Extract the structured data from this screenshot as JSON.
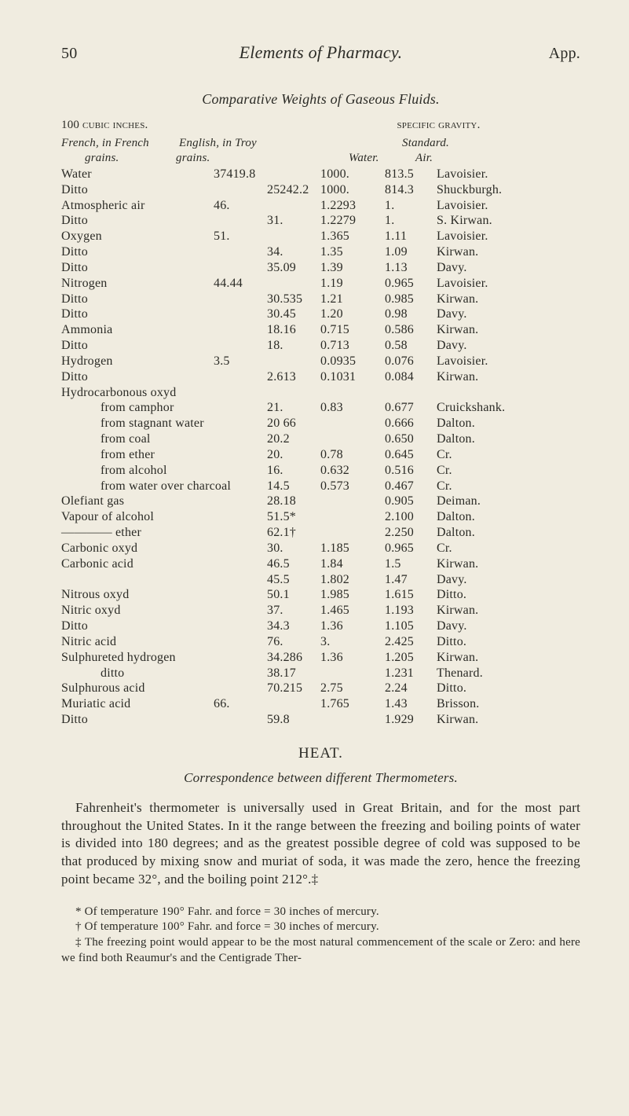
{
  "colors": {
    "background": "#f0ece0",
    "text": "#2b2b26"
  },
  "typography": {
    "family": "Times New Roman / Georgia serif",
    "body_size_pt": 12,
    "header_size_pt": 15,
    "italic_sections": [
      "running_title",
      "subheading",
      "column_headers",
      "correspondence_line"
    ]
  },
  "header": {
    "page_number": "50",
    "running_title": "Elements of Pharmacy.",
    "app": "App."
  },
  "subheading": "Comparative Weights of Gaseous Fluids.",
  "table_headers": {
    "left_caption": "100 cubic inches.",
    "right_caption": "specific gravity.",
    "row1": {
      "french": "French, in French",
      "english": "English, in Troy",
      "standard": "Standard."
    },
    "row2": {
      "grains1": "grains.",
      "grains2": "grains.",
      "water": "Water.",
      "air": "Air."
    }
  },
  "rows": [
    {
      "name": "Water",
      "a": "37419.8",
      "b": "",
      "w": "1000.",
      "air": "813.5",
      "auth": "Lavoisier."
    },
    {
      "name": "Ditto",
      "a": "",
      "b": "25242.2",
      "w": "1000.",
      "air": "814.3",
      "auth": "Shuckburgh."
    },
    {
      "name": "Atmospheric air",
      "a": "46.",
      "b": "",
      "w": "1.2293",
      "air": "1.",
      "auth": "Lavoisier."
    },
    {
      "name": "Ditto",
      "a": "",
      "b": "31.",
      "w": "1.2279",
      "air": "1.",
      "auth": "S. Kirwan."
    },
    {
      "name": "Oxygen",
      "a": "51.",
      "b": "",
      "w": "1.365",
      "air": "1.11",
      "auth": "Lavoisier."
    },
    {
      "name": "Ditto",
      "a": "",
      "b": "34.",
      "w": "1.35",
      "air": "1.09",
      "auth": "Kirwan."
    },
    {
      "name": "Ditto",
      "a": "",
      "b": "35.09",
      "w": "1.39",
      "air": "1.13",
      "auth": "Davy."
    },
    {
      "name": "Nitrogen",
      "a": "44.44",
      "b": "",
      "w": "1.19",
      "air": "0.965",
      "auth": "Lavoisier."
    },
    {
      "name": "Ditto",
      "a": "",
      "b": "30.535",
      "w": "1.21",
      "air": "0.985",
      "auth": "Kirwan."
    },
    {
      "name": "Ditto",
      "a": "",
      "b": "30.45",
      "w": "1.20",
      "air": "0.98",
      "auth": "Davy."
    },
    {
      "name": "Ammonia",
      "a": "",
      "b": "18.16",
      "w": "0.715",
      "air": "0.586",
      "auth": "Kirwan."
    },
    {
      "name": "Ditto",
      "a": "",
      "b": "18.",
      "w": "0.713",
      "air": "0.58",
      "auth": "Davy."
    },
    {
      "name": "Hydrogen",
      "a": "3.5",
      "b": "",
      "w": "0.0935",
      "air": "0.076",
      "auth": "Lavoisier."
    },
    {
      "name": "Ditto",
      "a": "",
      "b": "2.613",
      "w": "0.1031",
      "air": "0.084",
      "auth": "Kirwan."
    },
    {
      "name": "Hydrocarbonous oxyd",
      "a": "",
      "b": "",
      "w": "",
      "air": "",
      "auth": ""
    },
    {
      "name": "from camphor",
      "indent": true,
      "a": "",
      "b": "21.",
      "w": "0.83",
      "air": "0.677",
      "auth": "Cruickshank."
    },
    {
      "name": "from stagnant water",
      "indent": true,
      "a": "",
      "b": "20 66",
      "w": "",
      "air": "0.666",
      "auth": "Dalton."
    },
    {
      "name": "from coal",
      "indent": true,
      "a": "",
      "b": "20.2",
      "w": "",
      "air": "0.650",
      "auth": "Dalton."
    },
    {
      "name": "from ether",
      "indent": true,
      "a": "",
      "b": "20.",
      "w": "0.78",
      "air": "0.645",
      "auth": "Cr."
    },
    {
      "name": "from alcohol",
      "indent": true,
      "a": "",
      "b": "16.",
      "w": "0.632",
      "air": "0.516",
      "auth": "Cr."
    },
    {
      "name": "from water over charcoal",
      "indent": true,
      "a": "",
      "b": "14.5",
      "w": "0.573",
      "air": "0.467",
      "auth": "Cr."
    },
    {
      "name": "Olefiant gas",
      "a": "",
      "b": "28.18",
      "w": "",
      "air": "0.905",
      "auth": "Deiman."
    },
    {
      "name": "Vapour of alcohol",
      "a": "",
      "b": "51.5*",
      "w": "",
      "air": "2.100",
      "auth": "Dalton."
    },
    {
      "name": "———— ether",
      "a": "",
      "b": "62.1†",
      "w": "",
      "air": "2.250",
      "auth": "Dalton."
    },
    {
      "name": "Carbonic oxyd",
      "a": "",
      "b": "30.",
      "w": "1.185",
      "air": "0.965",
      "auth": "Cr."
    },
    {
      "name": "Carbonic acid",
      "a": "",
      "b": "46.5",
      "w": "1.84",
      "air": "1.5",
      "auth": "Kirwan."
    },
    {
      "name": "",
      "a": "",
      "b": "45.5",
      "w": "1.802",
      "air": "1.47",
      "auth": "Davy."
    },
    {
      "name": "Nitrous oxyd",
      "a": "",
      "b": "50.1",
      "w": "1.985",
      "air": "1.615",
      "auth": "Ditto."
    },
    {
      "name": "Nitric oxyd",
      "a": "",
      "b": "37.",
      "w": "1.465",
      "air": "1.193",
      "auth": "Kirwan."
    },
    {
      "name": "Ditto",
      "a": "",
      "b": "34.3",
      "w": "1.36",
      "air": "1.105",
      "auth": "Davy."
    },
    {
      "name": "Nitric acid",
      "a": "",
      "b": "76.",
      "w": "3.",
      "air": "2.425",
      "auth": "Ditto."
    },
    {
      "name": "Sulphureted hydrogen",
      "a": "",
      "b": "34.286",
      "w": "1.36",
      "air": "1.205",
      "auth": "Kirwan."
    },
    {
      "name": "ditto",
      "indent": true,
      "a": "",
      "b": "38.17",
      "w": "",
      "air": "1.231",
      "auth": "Thenard."
    },
    {
      "name": "Sulphurous acid",
      "a": "",
      "b": "70.215",
      "w": "2.75",
      "air": "2.24",
      "auth": "Ditto."
    },
    {
      "name": "Muriatic acid",
      "a": "66.",
      "b": "",
      "w": "1.765",
      "air": "1.43",
      "auth": "Brisson."
    },
    {
      "name": "Ditto",
      "a": "",
      "b": "59.8",
      "w": "",
      "air": "1.929",
      "auth": "Kirwan."
    }
  ],
  "heat_heading": "HEAT.",
  "correspondence": "Correspondence between different Thermometers.",
  "paragraph": "Fahrenheit's thermometer is universally used in Great Britain, and for the most part throughout the United States. In it the range be­tween the freezing and boiling points of water is divided into 180 degrees; and as the greatest possible degree of cold was supposed to be that produced by mixing snow and muriat of soda, it was made the zero, hence the freezing point became 32°, and the boiling point 212°.‡",
  "footnotes": {
    "f1": "* Of temperature 190° Fahr. and force = 30 inches of mercury.",
    "f2": "† Of temperature 100° Fahr. and force = 30 inches of mercury.",
    "f3": "‡ The freezing point would appear to be the most natural commencement of the scale or Zero: and here we find both Reaumur's and the Centigrade Ther-"
  }
}
